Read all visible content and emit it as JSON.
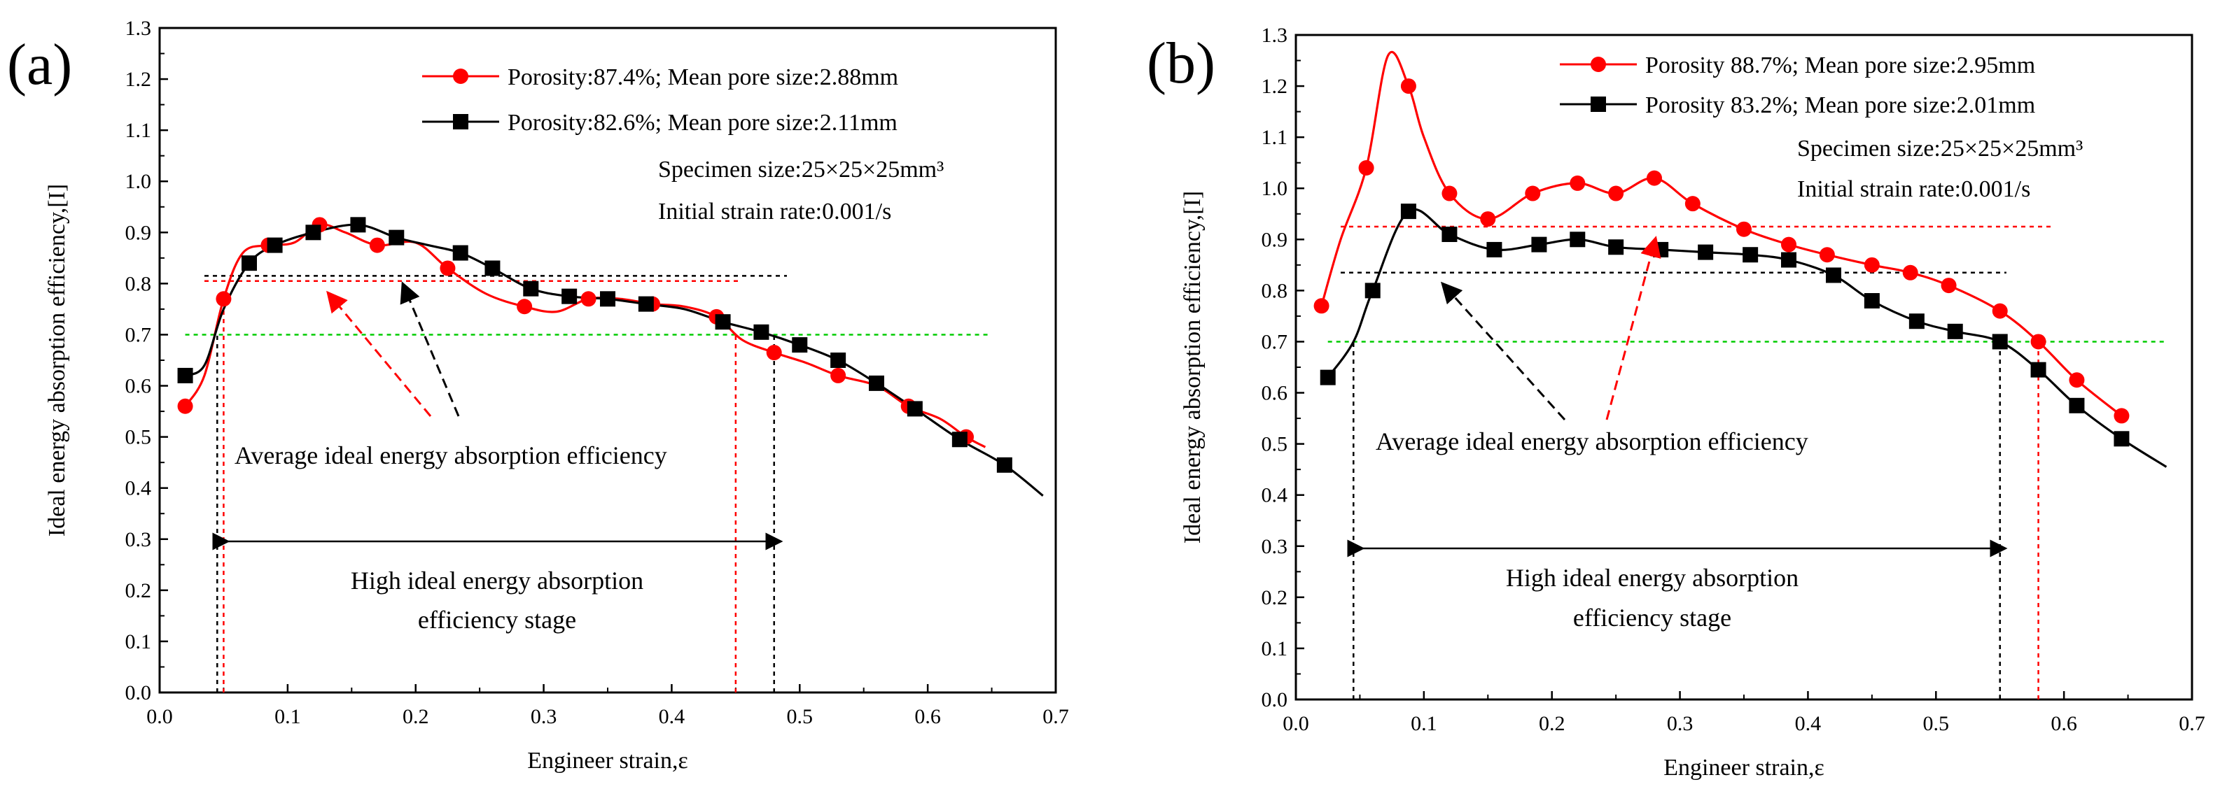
{
  "colors": {
    "red": "#ff0000",
    "black": "#000000",
    "green": "#00cc00"
  },
  "chart_data": [
    {
      "type": "line",
      "panel_label": "(a)",
      "xlabel": "Engineer strain,ε",
      "ylabel": "Ideal energy absorption efficiency,[I]",
      "xlim": [
        0,
        0.7
      ],
      "ylim": [
        0,
        1.3
      ],
      "xticks": [
        "0.0",
        "0.1",
        "0.2",
        "0.3",
        "0.4",
        "0.5",
        "0.6",
        "0.7"
      ],
      "yticks": [
        "0.0",
        "0.1",
        "0.2",
        "0.3",
        "0.4",
        "0.5",
        "0.6",
        "0.7",
        "0.8",
        "0.9",
        "1.0",
        "1.1",
        "1.2",
        "1.3"
      ],
      "series": [
        {
          "name": "Porosity:87.4%; Mean pore size:2.88mm",
          "color": "red",
          "marker": "circle",
          "x": [
            0.02,
            0.035,
            0.05,
            0.065,
            0.085,
            0.105,
            0.125,
            0.145,
            0.17,
            0.2,
            0.225,
            0.255,
            0.285,
            0.31,
            0.335,
            0.36,
            0.385,
            0.41,
            0.435,
            0.455,
            0.48,
            0.505,
            0.53,
            0.56,
            0.585,
            0.61,
            0.63,
            0.645
          ],
          "y": [
            0.56,
            0.62,
            0.77,
            0.86,
            0.875,
            0.88,
            0.915,
            0.9,
            0.875,
            0.88,
            0.83,
            0.78,
            0.755,
            0.745,
            0.77,
            0.77,
            0.76,
            0.755,
            0.735,
            0.69,
            0.665,
            0.645,
            0.62,
            0.6,
            0.56,
            0.535,
            0.5,
            0.48
          ],
          "marker_idx": [
            0,
            2,
            4,
            6,
            8,
            10,
            12,
            14,
            16,
            18,
            20,
            22,
            24,
            26
          ]
        },
        {
          "name": "Porosity:82.6%; Mean pore size:2.11mm",
          "color": "black",
          "marker": "square",
          "x": [
            0.02,
            0.035,
            0.05,
            0.07,
            0.09,
            0.12,
            0.155,
            0.185,
            0.21,
            0.235,
            0.26,
            0.29,
            0.32,
            0.35,
            0.38,
            0.41,
            0.44,
            0.47,
            0.5,
            0.53,
            0.56,
            0.59,
            0.625,
            0.66,
            0.69
          ],
          "y": [
            0.62,
            0.64,
            0.75,
            0.84,
            0.875,
            0.9,
            0.915,
            0.89,
            0.875,
            0.86,
            0.83,
            0.79,
            0.775,
            0.77,
            0.76,
            0.75,
            0.725,
            0.705,
            0.68,
            0.65,
            0.605,
            0.555,
            0.495,
            0.445,
            0.385
          ],
          "marker_idx": [
            0,
            3,
            4,
            5,
            6,
            7,
            9,
            10,
            11,
            12,
            13,
            14,
            16,
            17,
            18,
            19,
            20,
            21,
            22,
            23
          ]
        }
      ],
      "hlines": [
        {
          "y": 0.805,
          "x": [
            0.035,
            0.455
          ],
          "color": "red"
        },
        {
          "y": 0.815,
          "x": [
            0.035,
            0.49
          ],
          "color": "black"
        },
        {
          "y": 0.7,
          "x": [
            0.02,
            0.65
          ],
          "color": "green"
        }
      ],
      "vlines": [
        {
          "x": 0.05,
          "y": [
            0,
            0.77
          ],
          "color": "red"
        },
        {
          "x": 0.045,
          "y": [
            0,
            0.7
          ],
          "color": "black"
        },
        {
          "x": 0.45,
          "y": [
            0,
            0.7
          ],
          "color": "red"
        },
        {
          "x": 0.48,
          "y": [
            0,
            0.7
          ],
          "color": "black"
        }
      ],
      "info": [
        "Specimen size:25×25×25mm³",
        "Initial strain rate:0.001/s"
      ],
      "annotation_avg": "Average ideal energy absorption efficiency",
      "annotation_stage": [
        "High ideal energy absorption",
        "efficiency stage"
      ],
      "stage_range": [
        0.045,
        0.48
      ],
      "stage_y": 0.295
    },
    {
      "type": "line",
      "panel_label": "(b)",
      "xlabel": "Engineer strain,ε",
      "ylabel": "Ideal energy absorption efficiency,[I]",
      "xlim": [
        0,
        0.7
      ],
      "ylim": [
        0,
        1.3
      ],
      "xticks": [
        "0.0",
        "0.1",
        "0.2",
        "0.3",
        "0.4",
        "0.5",
        "0.6",
        "0.7"
      ],
      "yticks": [
        "0.0",
        "0.1",
        "0.2",
        "0.3",
        "0.4",
        "0.5",
        "0.6",
        "0.7",
        "0.8",
        "0.9",
        "1.0",
        "1.1",
        "1.2",
        "1.3"
      ],
      "series": [
        {
          "name": "Porosity 88.7%; Mean pore size:2.95mm",
          "color": "red",
          "marker": "circle",
          "x": [
            0.02,
            0.035,
            0.055,
            0.072,
            0.088,
            0.1,
            0.12,
            0.15,
            0.185,
            0.22,
            0.25,
            0.28,
            0.31,
            0.35,
            0.385,
            0.415,
            0.45,
            0.48,
            0.51,
            0.55,
            0.58,
            0.61,
            0.645
          ],
          "y": [
            0.77,
            0.9,
            1.04,
            1.26,
            1.2,
            1.1,
            0.99,
            0.94,
            0.99,
            1.01,
            0.99,
            1.02,
            0.97,
            0.92,
            0.89,
            0.87,
            0.85,
            0.835,
            0.81,
            0.76,
            0.7,
            0.625,
            0.555
          ],
          "marker_idx": [
            0,
            2,
            4,
            6,
            7,
            8,
            9,
            10,
            11,
            12,
            13,
            14,
            15,
            16,
            17,
            18,
            19,
            20,
            21,
            22
          ]
        },
        {
          "name": "Porosity 83.2%; Mean pore size:2.01mm",
          "color": "black",
          "marker": "square",
          "x": [
            0.025,
            0.045,
            0.06,
            0.088,
            0.12,
            0.155,
            0.19,
            0.22,
            0.25,
            0.285,
            0.32,
            0.355,
            0.385,
            0.42,
            0.45,
            0.485,
            0.515,
            0.55,
            0.58,
            0.61,
            0.645,
            0.68
          ],
          "y": [
            0.63,
            0.7,
            0.8,
            0.955,
            0.91,
            0.88,
            0.89,
            0.9,
            0.885,
            0.88,
            0.875,
            0.87,
            0.86,
            0.83,
            0.78,
            0.74,
            0.72,
            0.7,
            0.645,
            0.575,
            0.51,
            0.455
          ],
          "marker_idx": [
            0,
            2,
            3,
            4,
            5,
            6,
            7,
            8,
            9,
            10,
            11,
            12,
            13,
            14,
            15,
            16,
            17,
            18,
            19,
            20
          ]
        }
      ],
      "hlines": [
        {
          "y": 0.925,
          "x": [
            0.035,
            0.59
          ],
          "color": "red"
        },
        {
          "y": 0.835,
          "x": [
            0.035,
            0.555
          ],
          "color": "black"
        },
        {
          "y": 0.7,
          "x": [
            0.025,
            0.68
          ],
          "color": "green"
        }
      ],
      "vlines": [
        {
          "x": 0.045,
          "y": [
            0,
            0.7
          ],
          "color": "black"
        },
        {
          "x": 0.55,
          "y": [
            0,
            0.7
          ],
          "color": "black"
        },
        {
          "x": 0.58,
          "y": [
            0,
            0.7
          ],
          "color": "red"
        }
      ],
      "info": [
        "Specimen size:25×25×25mm³",
        "Initial strain rate:0.001/s"
      ],
      "annotation_avg": "Average ideal energy absorption efficiency",
      "annotation_stage": [
        "High ideal energy absorption",
        "efficiency stage"
      ],
      "stage_range": [
        0.045,
        0.55
      ],
      "stage_y": 0.295
    }
  ]
}
